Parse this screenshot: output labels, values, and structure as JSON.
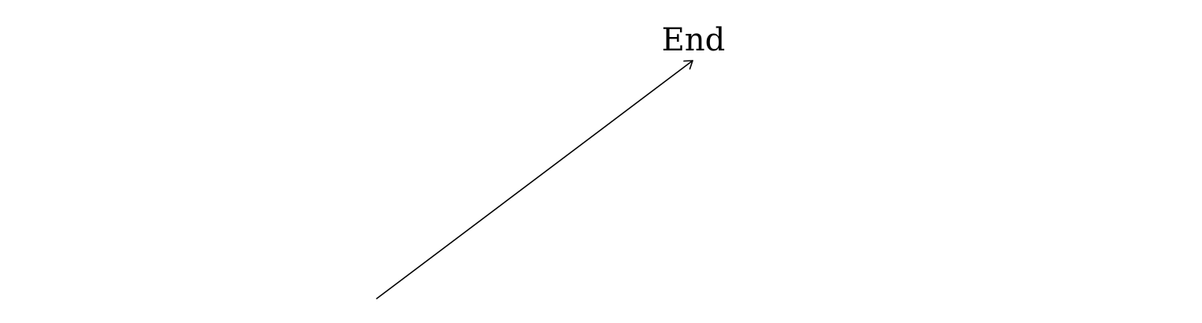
{
  "diagram": {
    "end_node": {
      "label": "End"
    },
    "arrow": {
      "color": "#000000",
      "head": "open-arrowhead-icon"
    }
  }
}
